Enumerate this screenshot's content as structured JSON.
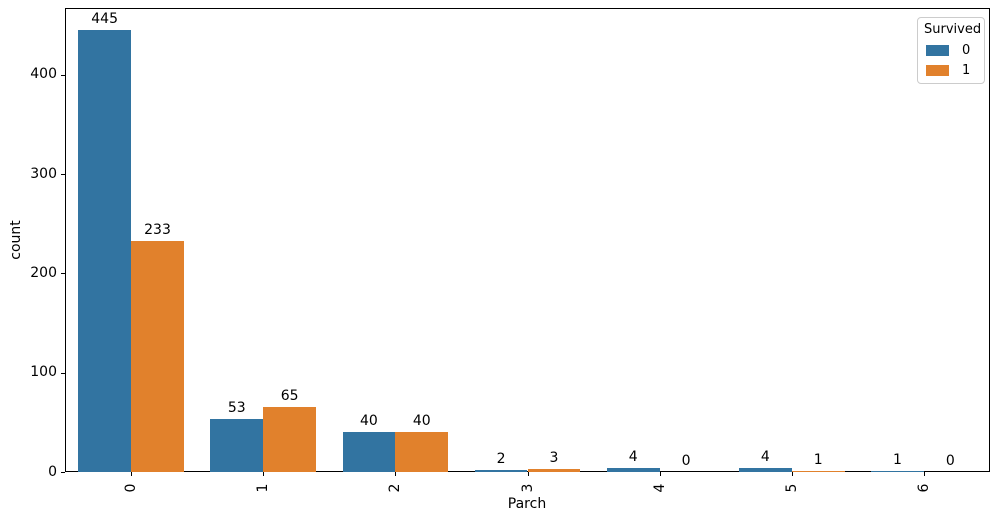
{
  "chart_data": {
    "type": "bar",
    "title": "",
    "xlabel": "Parch",
    "ylabel": "count",
    "categories": [
      "0",
      "1",
      "2",
      "3",
      "4",
      "5",
      "6"
    ],
    "series": [
      {
        "name": "0",
        "color": "#3274a1",
        "values": [
          445,
          53,
          40,
          2,
          4,
          4,
          1
        ]
      },
      {
        "name": "1",
        "color": "#e1812c",
        "values": [
          233,
          65,
          40,
          3,
          0,
          1,
          0
        ]
      }
    ],
    "yticks": [
      0,
      100,
      200,
      300,
      400
    ],
    "ylim": [
      0,
      467.25
    ],
    "bar_labels": true,
    "xtick_rotation": 90,
    "grid": false,
    "legend": {
      "title": "Survived",
      "position": "upper right"
    }
  }
}
